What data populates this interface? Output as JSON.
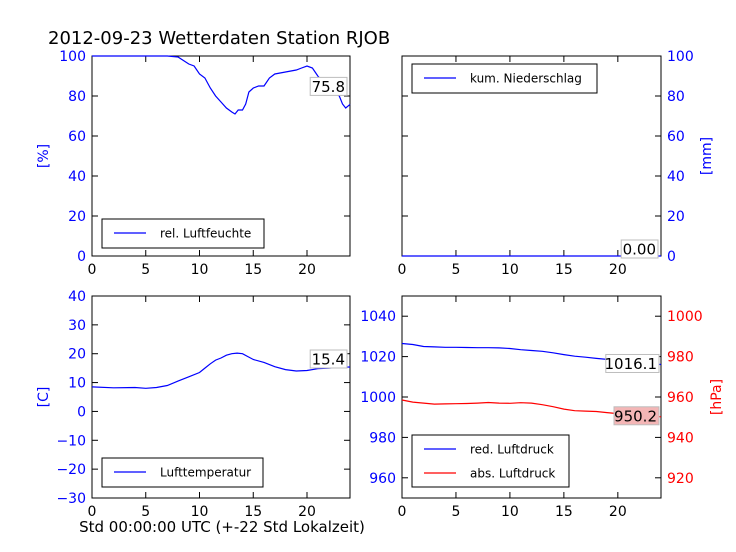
{
  "title": "2012-09-23 Wetterdaten Station RJOB",
  "xlabel": "Std 00:00:00 UTC (+-22 Std Lokalzeit)",
  "colors": {
    "blue": "#0000ff",
    "red": "#ff0000",
    "axis": "#000000",
    "label_box_red": "#f4b6b6"
  },
  "chart_data": [
    {
      "type": "line",
      "panel": "top-left",
      "ylabel": "[%]",
      "xlim": [
        0,
        24
      ],
      "ylim": [
        0,
        100
      ],
      "xticks": [
        "0",
        "5",
        "10",
        "15",
        "20"
      ],
      "yticks": [
        "0",
        "20",
        "40",
        "60",
        "80",
        "100"
      ],
      "legend": {
        "placement": "lower-left",
        "entries": [
          "rel. Luftfeuchte"
        ]
      },
      "last_value_label": "75.8",
      "series": [
        {
          "name": "rel. Luftfeuchte",
          "color": "#0000ff",
          "x": [
            0,
            4,
            7,
            8,
            9,
            9.5,
            10,
            10.5,
            11,
            11.5,
            12,
            12.5,
            13,
            13.3,
            13.6,
            14,
            14.3,
            14.6,
            15,
            15.5,
            16,
            16.5,
            17,
            18,
            19,
            19.5,
            20,
            20.5,
            21,
            21.5,
            22,
            22.5,
            23,
            23.3,
            23.6,
            24
          ],
          "y": [
            100,
            100,
            100,
            99.5,
            96,
            95,
            91,
            89,
            84,
            80,
            77,
            74,
            72,
            71,
            73,
            73,
            76,
            82,
            84,
            85,
            85,
            89,
            91,
            92,
            93,
            94,
            95,
            94,
            90,
            87,
            84,
            82,
            80,
            76,
            74,
            75.8
          ]
        }
      ]
    },
    {
      "type": "line",
      "panel": "top-right",
      "ylabel": "[mm]",
      "xlim": [
        0,
        24
      ],
      "ylim": [
        0,
        100
      ],
      "xticks": [
        "0",
        "5",
        "10",
        "15",
        "20"
      ],
      "yticks": [
        "0",
        "20",
        "40",
        "60",
        "80",
        "100"
      ],
      "legend": {
        "placement": "upper-left",
        "entries": [
          "kum. Niederschlag"
        ]
      },
      "last_value_label": "0.00",
      "series": [
        {
          "name": "kum. Niederschlag",
          "color": "#0000ff",
          "x": [
            0,
            24
          ],
          "y": [
            0,
            0
          ]
        }
      ]
    },
    {
      "type": "line",
      "panel": "bottom-left",
      "ylabel": "[C]",
      "xlim": [
        0,
        24
      ],
      "ylim": [
        -30,
        40
      ],
      "xticks": [
        "0",
        "5",
        "10",
        "15",
        "20"
      ],
      "yticks": [
        "−30",
        "−20",
        "−10",
        "0",
        "10",
        "20",
        "30",
        "40"
      ],
      "legend": {
        "placement": "lower-left",
        "entries": [
          "Lufttemperatur"
        ]
      },
      "last_value_label": "15.4",
      "series": [
        {
          "name": "Lufttemperatur",
          "color": "#0000ff",
          "x": [
            0,
            2,
            4,
            5,
            6,
            7,
            8,
            9,
            10,
            10.5,
            11,
            11.5,
            12,
            12.5,
            13,
            13.5,
            14,
            14.5,
            15,
            16,
            17,
            18,
            19,
            20,
            21,
            22,
            23,
            24
          ],
          "y": [
            8.5,
            8.2,
            8.3,
            8.0,
            8.3,
            9.0,
            10.5,
            12.0,
            13.5,
            15,
            16.5,
            17.8,
            18.5,
            19.5,
            20.0,
            20.2,
            20.0,
            19.0,
            18.0,
            17.0,
            15.5,
            14.5,
            14.0,
            14.2,
            14.8,
            15.0,
            15.3,
            15.4
          ]
        }
      ]
    },
    {
      "type": "line",
      "panel": "bottom-right",
      "ylabel_right": "[hPa]",
      "xlim": [
        0,
        24
      ],
      "ylim_left": [
        950,
        1050
      ],
      "ylim_right": [
        910,
        1010
      ],
      "xticks": [
        "0",
        "5",
        "10",
        "15",
        "20"
      ],
      "yticks_left": [
        "960",
        "980",
        "1000",
        "1020",
        "1040"
      ],
      "yticks_right": [
        "920",
        "940",
        "960",
        "980",
        "1000"
      ],
      "legend": {
        "placement": "lower-left",
        "entries": [
          "red. Luftdruck",
          "abs. Luftdruck"
        ]
      },
      "last_value_labels": [
        "1016.1",
        "950.2"
      ],
      "series": [
        {
          "name": "red. Luftdruck",
          "color": "#0000ff",
          "axis": "left",
          "x": [
            0,
            1,
            2,
            3,
            4,
            5,
            6,
            7,
            8,
            9,
            10,
            11,
            12,
            13,
            14,
            15,
            16,
            17,
            18,
            19,
            20,
            21,
            22,
            23,
            24
          ],
          "y": [
            1026.5,
            1026,
            1025,
            1024.8,
            1024.6,
            1024.6,
            1024.5,
            1024.4,
            1024.4,
            1024.3,
            1024,
            1023.4,
            1023,
            1022.6,
            1021.9,
            1021,
            1020.2,
            1019.7,
            1019.1,
            1018.6,
            1018.2,
            1017.6,
            1017.0,
            1016.5,
            1016.1
          ]
        },
        {
          "name": "abs. Luftdruck",
          "color": "#ff0000",
          "axis": "right",
          "x": [
            0,
            1,
            2,
            3,
            4,
            5,
            6,
            7,
            8,
            9,
            10,
            11,
            12,
            13,
            14,
            15,
            16,
            17,
            18,
            19,
            20,
            21,
            22,
            23,
            24
          ],
          "y": [
            958.5,
            957.5,
            957,
            956.5,
            956.6,
            956.7,
            956.8,
            957,
            957.3,
            957,
            956.9,
            957.2,
            957,
            956.2,
            955.2,
            954,
            953.2,
            953,
            952.8,
            952.3,
            951.8,
            951.5,
            951,
            950.5,
            950.2
          ]
        }
      ]
    }
  ]
}
